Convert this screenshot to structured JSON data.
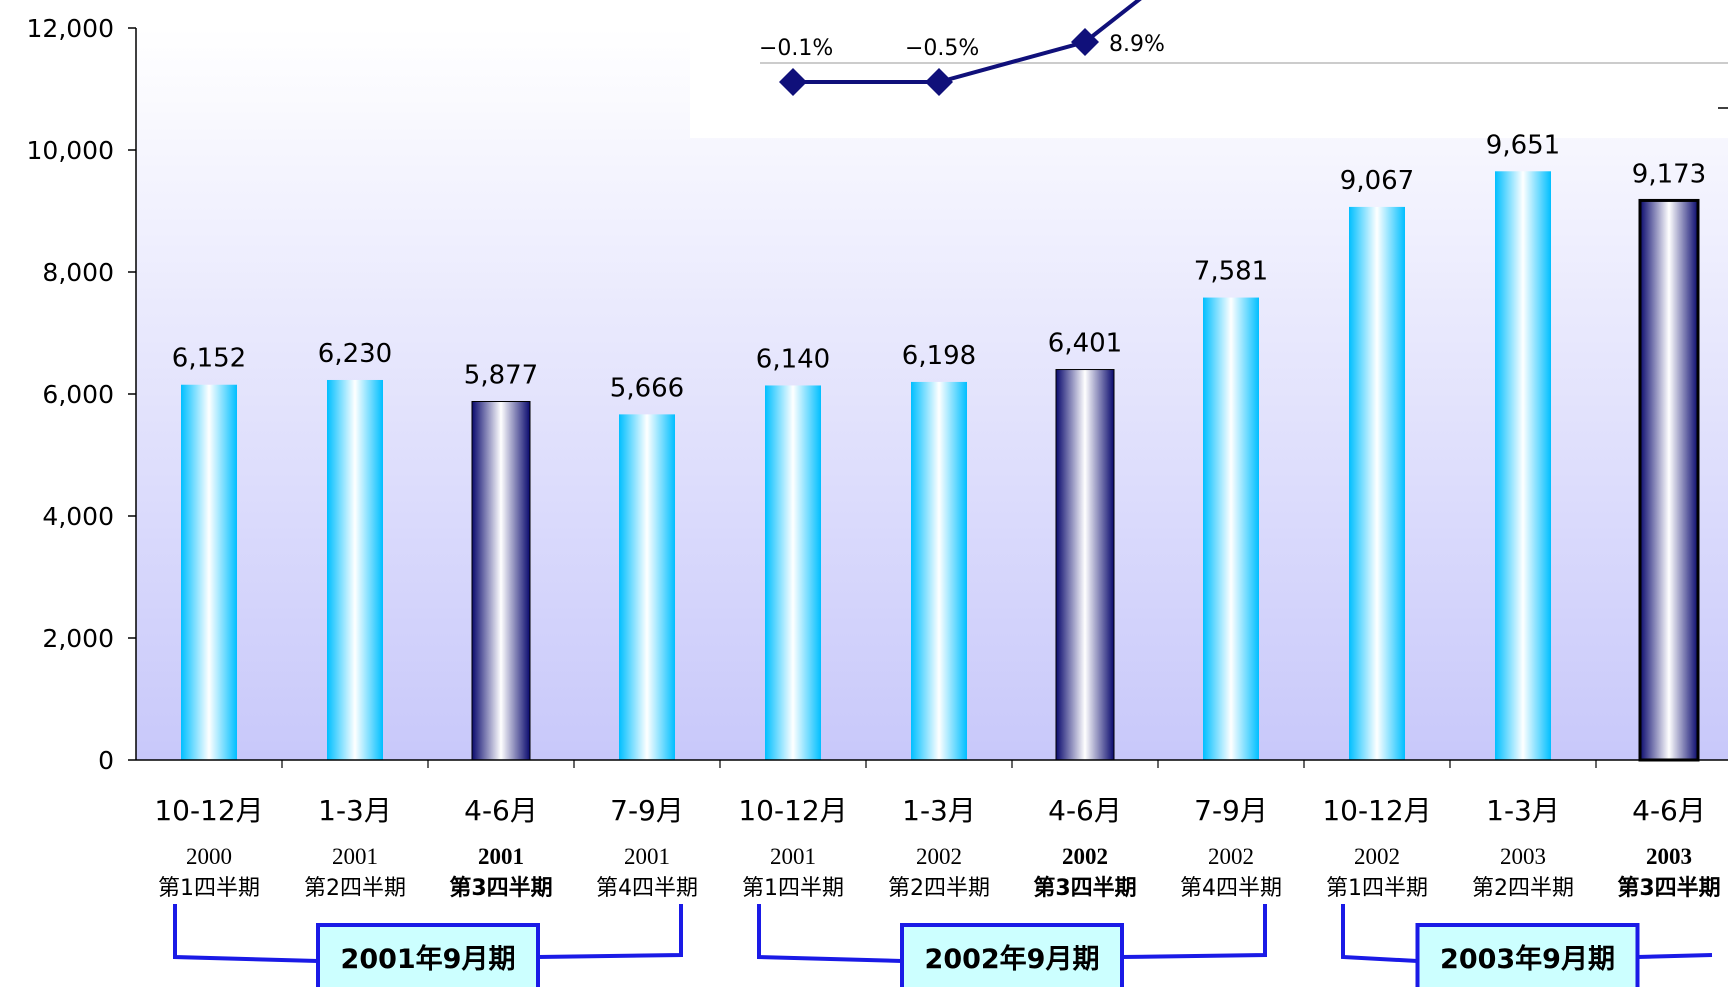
{
  "colors": {
    "bar_highlight": "#00BFFF",
    "bar_dark": "#0A0A6E",
    "line": "#10107A",
    "bracket": "#1A1AE6",
    "fy_box_fill": "#CCFFFF",
    "plot_bg_top": "#FFFFFF",
    "plot_bg_bottom": "#C8C8FA"
  },
  "chart_data": {
    "type": "bar",
    "ylim": [
      0,
      12000
    ],
    "yticks": [
      "0",
      "2,000",
      "4,000",
      "6,000",
      "8,000",
      "10,000",
      "12,000"
    ],
    "ytick_values": [
      0,
      2000,
      4000,
      6000,
      8000,
      10000,
      12000
    ],
    "categories": [
      "10-12月",
      "1-3月",
      "4-6月",
      "7-9月",
      "10-12月",
      "1-3月",
      "4-6月",
      "7-9月",
      "10-12月",
      "1-3月",
      "4-6月"
    ],
    "years": [
      "2000",
      "2001",
      "2001",
      "2001",
      "2001",
      "2002",
      "2002",
      "2002",
      "2002",
      "2003",
      "2003"
    ],
    "quarters": [
      "第1四半期",
      "第2四半期",
      "第3四半期",
      "第4四半期",
      "第1四半期",
      "第2四半期",
      "第3四半期",
      "第4四半期",
      "第1四半期",
      "第2四半期",
      "第3四半期"
    ],
    "highlighted": [
      false,
      false,
      true,
      false,
      false,
      false,
      true,
      false,
      false,
      false,
      true
    ],
    "values": [
      6152,
      6230,
      5877,
      5666,
      6140,
      6198,
      6401,
      7581,
      9067,
      9651,
      9173
    ],
    "value_labels": [
      "6,152",
      "6,230",
      "5,877",
      "5,666",
      "6,140",
      "6,198",
      "6,401",
      "7,581",
      "9,067",
      "9,651",
      "9,173"
    ],
    "growth_line": {
      "labels": [
        "−0.1%",
        "−0.5%",
        "8.9%"
      ],
      "category_index": [
        4,
        5,
        6
      ]
    },
    "fiscal_periods": [
      {
        "label": "2001年9月期",
        "from": 0,
        "to": 3
      },
      {
        "label": "2002年9月期",
        "from": 4,
        "to": 7
      },
      {
        "label": "2003年9月期",
        "from": 8,
        "to": 10
      }
    ],
    "grid": false
  }
}
